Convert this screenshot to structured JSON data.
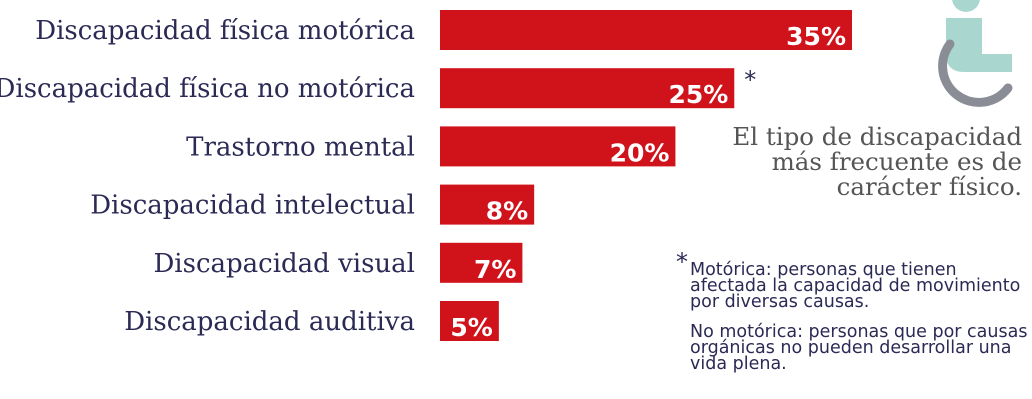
{
  "chart_data": {
    "type": "bar",
    "orientation": "horizontal",
    "categories": [
      "Discapacidad física motórica",
      "Discapacidad física no motórica",
      "Trastorno mental",
      "Discapacidad intelectual",
      "Discapacidad visual",
      "Discapacidad auditiva"
    ],
    "values": [
      35,
      25,
      20,
      8,
      7,
      5
    ],
    "value_labels": [
      "35%",
      "25%",
      "20%",
      "8%",
      "7%",
      "5%"
    ],
    "asterisk_on": "Discapacidad física no motórica",
    "bar_color": "#d0121b",
    "xlim": [
      0,
      35
    ],
    "grid": false,
    "legend": "none"
  },
  "asterisk_mark": "*",
  "side_text": "El tipo de discapacidad más frecuente es de carácter físico.",
  "notes": {
    "star": "*",
    "motorica": "Motórica: personas que tienen afectada la capacidad de movimiento por diversas causas.",
    "no_motorica": "No motórica: personas que por causas orgánicas no pueden desarrollar una vida plena."
  },
  "icon": "wheelchair-icon",
  "colors": {
    "bar": "#d0121b",
    "text": "#2b2a55",
    "side_text": "#555555",
    "icon_fill": "#a9d7d0",
    "icon_wheel": "#8a8d96"
  }
}
